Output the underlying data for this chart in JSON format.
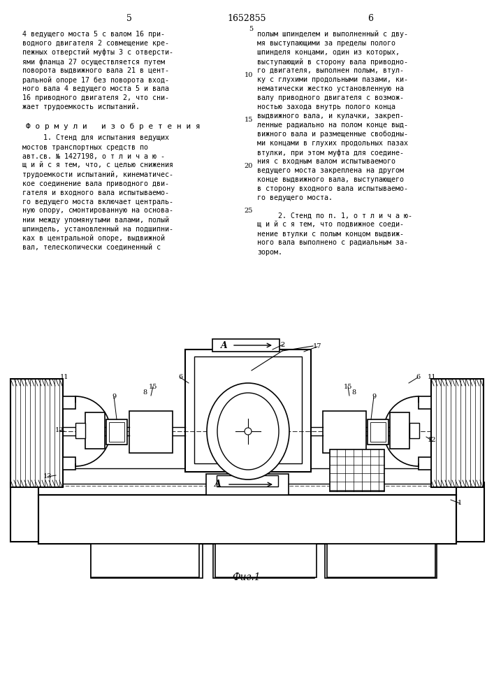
{
  "page_number_left": "5",
  "page_number_center": "1652855",
  "page_number_right": "6",
  "left_column_text": [
    "4 ведущего моста 5 с валом 16 при-",
    "водного двигателя 2 совмещение кре-",
    "пежных отверстий муфты 3 с отверсти-",
    "ями фланца 27 осуществляется путем",
    "поворота выдвижного вала 21 в цент-",
    "ральной опоре 17 без поворота вход-",
    "ного вала 4 ведущего моста 5 и вала",
    "16 приводного двигателя 2, что сни-",
    "жает трудоемкость испытаний."
  ],
  "formula_header": "Ф о р м у л и   и з о б р е т е н и я",
  "formula_text_left": [
    "     1. Стенд для испытания ведущих",
    "мостов транспортных средств по",
    "авт.св. № 1427198, о т л и ч а ю -",
    "щ и й с я тем, что, с целью снижения",
    "трудоемкости испытаний, кинематичес-",
    "кое соединение вала приводного дви-",
    "гателя и входного вала испытываемо-",
    "го ведущего моста включает централь-",
    "ную опору, смонтированную на основа-",
    "нии между упомянутыми валами, полый",
    "шпиндель, установленный на подшипни-",
    "ках в центральной опоре, выдвижной",
    "вал, телескопически соединенный с"
  ],
  "right_column_text": [
    "полым шпинделем и выполненный с дву-",
    "мя выступающими за пределы полого",
    "шпинделя концами, один из которых,",
    "выступающий в сторону вала приводно-",
    "го двигателя, выполнен полым, втул-",
    "ку с глухими продольными пазами, ки-",
    "нематически жестко установленную на",
    "валу приводного двигателя с возмож-",
    "ностью захода внутрь полого конца",
    "выдвижного вала, и кулачки, закреп-",
    "ленные радиально на полом конце выд-",
    "вижного вала и размещенные свободны-",
    "ми концами в глухих продольных пазах",
    "втулки, при этом муфта для соедине-",
    "ния с входным валом испытываемого",
    "ведущего моста закреплена на другом",
    "конце выдвижного вала, выступающего",
    "в сторону входного вала испытываемо-",
    "го ведущего моста."
  ],
  "formula2_text": [
    "     2. Стенд по п. 1, о т л и ч а ю-",
    "щ и й с я тем, что подвижное соеди-",
    "нение втулки с полым концом выдвиж-",
    "ного вала выполнено с радиальным за-",
    "зором."
  ],
  "fig_caption": "Фиг.1",
  "background_color": "#ffffff",
  "text_color": "#000000"
}
